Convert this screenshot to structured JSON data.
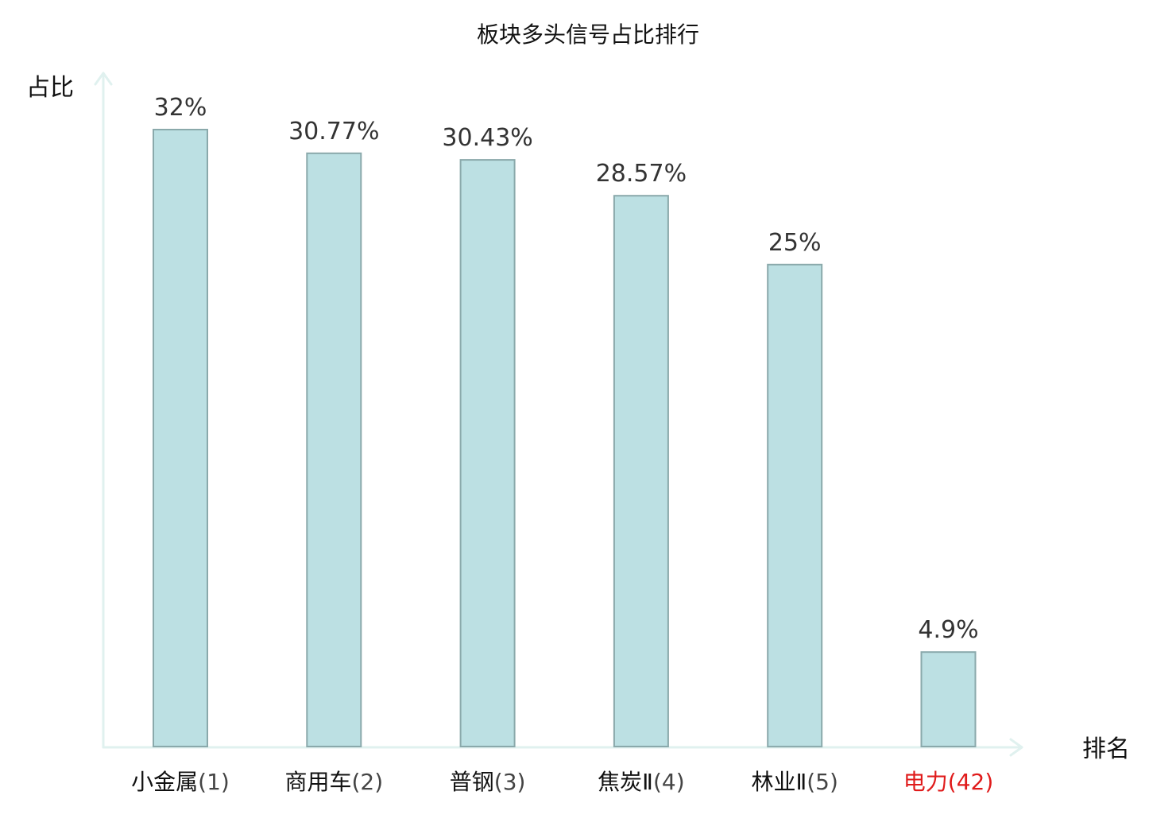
{
  "colors": {
    "bar_fill": "#bce0e3",
    "bar_stroke": "#8aa9ab",
    "axis": "#e0f1ef",
    "text": "#111111",
    "value_text": "#333333",
    "rank_text": "#444444",
    "highlight": "#e01b1b"
  },
  "chart_data": {
    "type": "bar",
    "title": "板块多头信号占比排行",
    "ylabel": "占比",
    "xlabel": "排名",
    "ylim": [
      0,
      35
    ],
    "grid": false,
    "legend": "none",
    "categories": [
      {
        "name": "小金属",
        "rank": "(1)"
      },
      {
        "name": "商用车",
        "rank": "(2)"
      },
      {
        "name": "普钢",
        "rank": "(3)"
      },
      {
        "name": "焦炭Ⅱ",
        "rank": "(4)"
      },
      {
        "name": "林业Ⅱ",
        "rank": "(5)"
      },
      {
        "name": "电力",
        "rank": "(42)",
        "highlight": true
      }
    ],
    "values": [
      32,
      30.77,
      30.43,
      28.57,
      25,
      4.9
    ],
    "value_labels": [
      "32%",
      "30.77%",
      "30.43%",
      "28.57%",
      "25%",
      "4.9%"
    ]
  }
}
